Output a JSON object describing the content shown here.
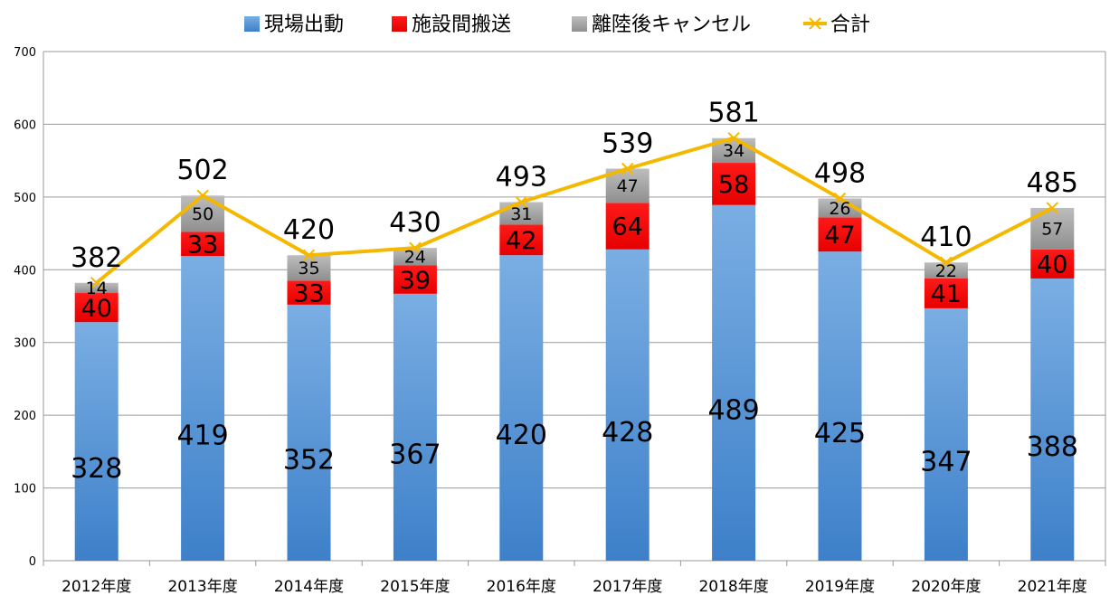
{
  "chart_data": {
    "type": "bar",
    "stacked": true,
    "categories": [
      "2012年度",
      "2013年度",
      "2014年度",
      "2015年度",
      "2016年度",
      "2017年度",
      "2018年度",
      "2019年度",
      "2020年度",
      "2021年度"
    ],
    "series": [
      {
        "name": "現場出動",
        "kind": "bar",
        "color": "#4a8fd4",
        "values": [
          328,
          419,
          352,
          367,
          420,
          428,
          489,
          425,
          347,
          388
        ]
      },
      {
        "name": "施設間搬送",
        "kind": "bar",
        "color": "#ff0000",
        "values": [
          40,
          33,
          33,
          39,
          42,
          64,
          58,
          47,
          41,
          40
        ]
      },
      {
        "name": "離陸後キャンセル",
        "kind": "bar",
        "color": "#a6a6a6",
        "values": [
          14,
          50,
          35,
          24,
          31,
          47,
          34,
          26,
          22,
          57
        ]
      },
      {
        "name": "合計",
        "kind": "line",
        "color": "#f5b800",
        "values": [
          382,
          502,
          420,
          430,
          493,
          539,
          581,
          498,
          410,
          485
        ]
      }
    ],
    "ylim": [
      0,
      700
    ],
    "yticks": [
      0,
      100,
      200,
      300,
      400,
      500,
      600,
      700
    ],
    "grid": true,
    "legend_position": "top",
    "title": "",
    "xlabel": "",
    "ylabel": ""
  }
}
